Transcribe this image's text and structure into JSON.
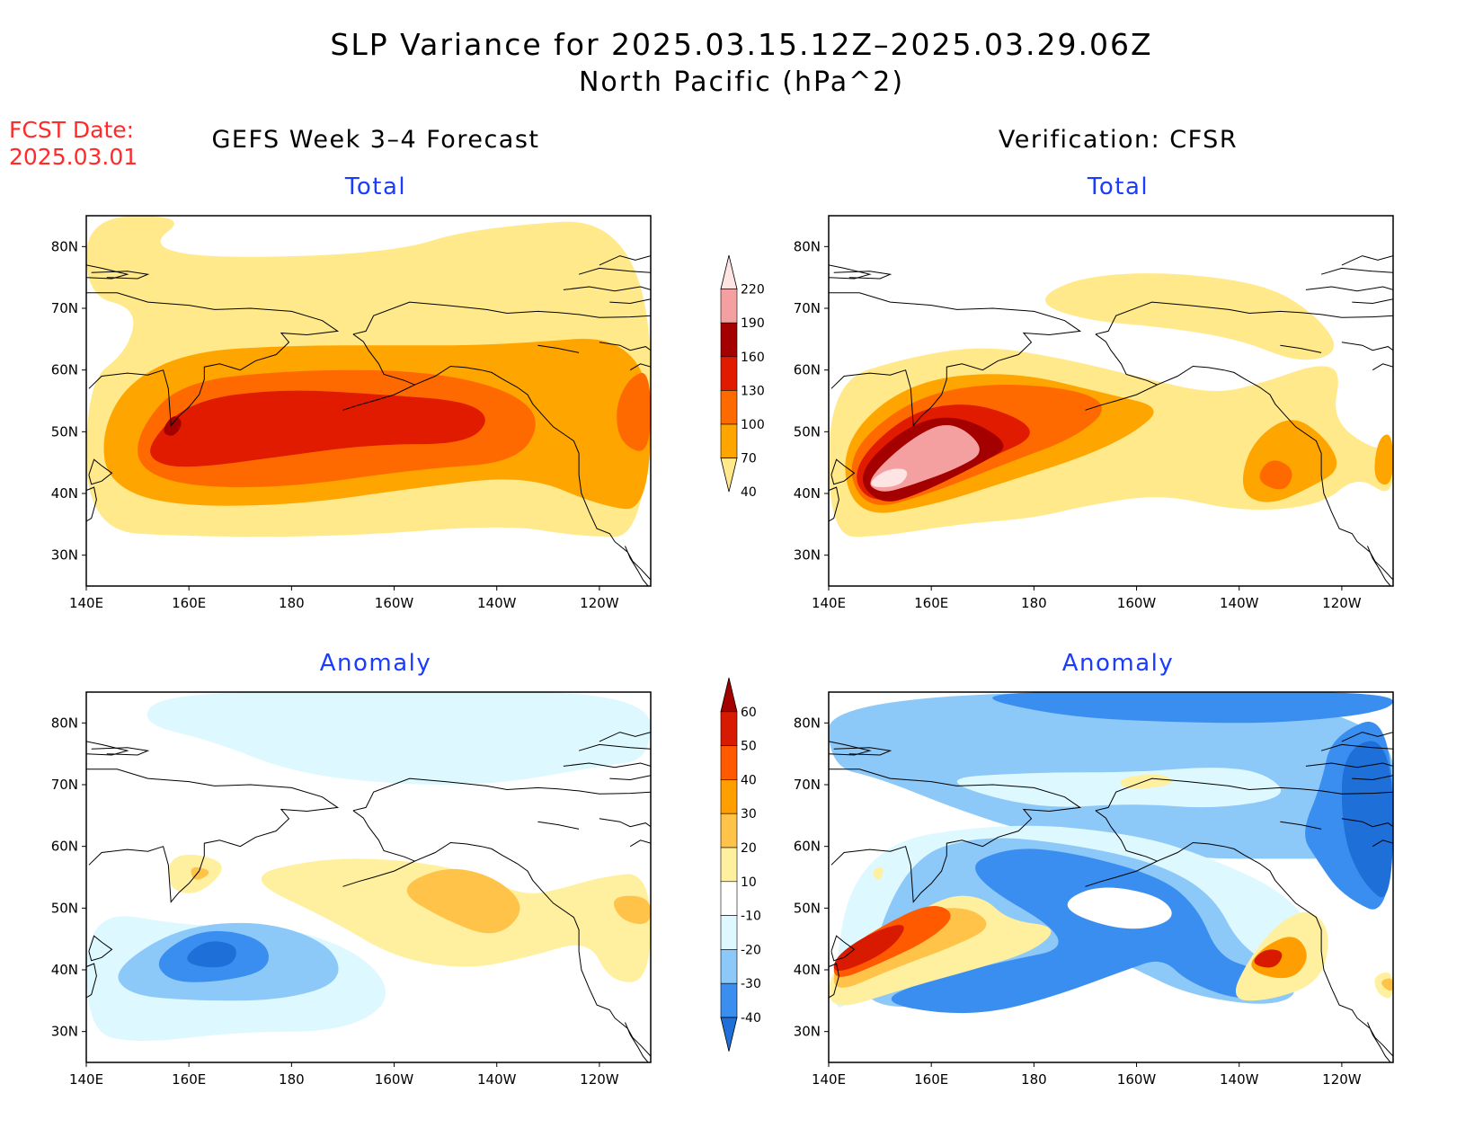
{
  "title": {
    "line1": "SLP Variance for 2025.03.15.12Z–2025.03.29.06Z",
    "line2": "North Pacific (hPa^2)"
  },
  "forecast_date": {
    "label": "FCST Date:",
    "value": "2025.03.01"
  },
  "columns": [
    {
      "title": "GEFS Week 3–4 Forecast"
    },
    {
      "title": "Verification: CFSR"
    }
  ],
  "panels": [
    {
      "name": "forecast-total",
      "subtitle": "Total"
    },
    {
      "name": "verification-total",
      "subtitle": "Total"
    },
    {
      "name": "forecast-anomaly",
      "subtitle": "Anomaly"
    },
    {
      "name": "verification-anomaly",
      "subtitle": "Anomaly"
    }
  ],
  "axes": {
    "lon_ticks": [
      "140E",
      "160E",
      "180",
      "160W",
      "140W",
      "120W"
    ],
    "lat_ticks": [
      "30N",
      "40N",
      "50N",
      "60N",
      "70N",
      "80N"
    ],
    "lon_range": [
      140,
      250
    ],
    "lat_range": [
      25,
      85
    ]
  },
  "colorbars": {
    "total": {
      "levels": [
        "40",
        "70",
        "100",
        "130",
        "160",
        "190",
        "220"
      ],
      "colors": [
        "#ffe98a",
        "#ffa500",
        "#ff6a00",
        "#e01b00",
        "#a50000",
        "#f4a0a0",
        "#ffe4e4"
      ]
    },
    "anomaly": {
      "levels": [
        "-40",
        "-30",
        "-20",
        "-10",
        "10",
        "20",
        "30",
        "40",
        "50",
        "60"
      ],
      "colors": [
        "#1f6fd8",
        "#3a8ef0",
        "#8cc8f8",
        "#ddf8ff",
        "#ffffff",
        "#fff0a0",
        "#ffc34a",
        "#ff9e00",
        "#ff5a00",
        "#d81a00",
        "#a50000"
      ]
    }
  }
}
